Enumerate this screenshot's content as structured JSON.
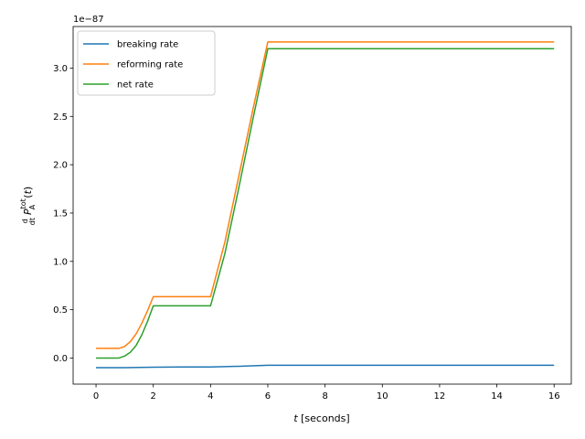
{
  "chart_data": {
    "type": "line",
    "title": "",
    "xlabel": "t [seconds]",
    "ylabel": "d/dt P_A^tot(t)",
    "offset_text": "1e−87",
    "xlim": [
      -0.8,
      16.6
    ],
    "ylim": [
      -0.27,
      3.43
    ],
    "xticks": [
      0,
      2,
      4,
      6,
      8,
      10,
      12,
      14,
      16
    ],
    "yticks": [
      0.0,
      0.5,
      1.0,
      1.5,
      2.0,
      2.5,
      3.0
    ],
    "xtick_labels": [
      "0",
      "2",
      "4",
      "6",
      "8",
      "10",
      "12",
      "14",
      "16"
    ],
    "ytick_labels": [
      "0.0",
      "0.5",
      "1.0",
      "1.5",
      "2.0",
      "2.5",
      "3.0"
    ],
    "legend_position": "top-left",
    "grid": false,
    "series": [
      {
        "name": "breaking rate",
        "color": "#1f77b4",
        "x": [
          0,
          1,
          2,
          3,
          4,
          5,
          6,
          8,
          10,
          12,
          14,
          16
        ],
        "y": [
          -0.1,
          -0.1,
          -0.095,
          -0.093,
          -0.093,
          -0.085,
          -0.075,
          -0.075,
          -0.075,
          -0.075,
          -0.075,
          -0.075
        ]
      },
      {
        "name": "reforming rate",
        "color": "#ff7f0e",
        "x": [
          0,
          0.4,
          0.8,
          1.0,
          1.2,
          1.4,
          1.6,
          1.8,
          2.0,
          2.5,
          3.0,
          3.5,
          4.0,
          4.5,
          5.0,
          5.5,
          6.0,
          8,
          10,
          12,
          14,
          16
        ],
        "y": [
          0.1,
          0.1,
          0.1,
          0.12,
          0.17,
          0.25,
          0.36,
          0.49,
          0.635,
          0.635,
          0.635,
          0.635,
          0.635,
          1.2,
          1.9,
          2.6,
          3.27,
          3.27,
          3.27,
          3.27,
          3.27,
          3.27
        ]
      },
      {
        "name": "net rate",
        "color": "#2ca02c",
        "x": [
          0,
          0.4,
          0.8,
          1.0,
          1.2,
          1.4,
          1.6,
          1.8,
          2.0,
          2.5,
          3.0,
          3.5,
          4.0,
          4.5,
          5.0,
          5.5,
          6.0,
          8,
          10,
          12,
          14,
          16
        ],
        "y": [
          0.0,
          0.0,
          0.0,
          0.02,
          0.06,
          0.13,
          0.24,
          0.38,
          0.54,
          0.54,
          0.54,
          0.54,
          0.54,
          1.08,
          1.78,
          2.5,
          3.2,
          3.2,
          3.2,
          3.2,
          3.2,
          3.2
        ]
      }
    ]
  }
}
